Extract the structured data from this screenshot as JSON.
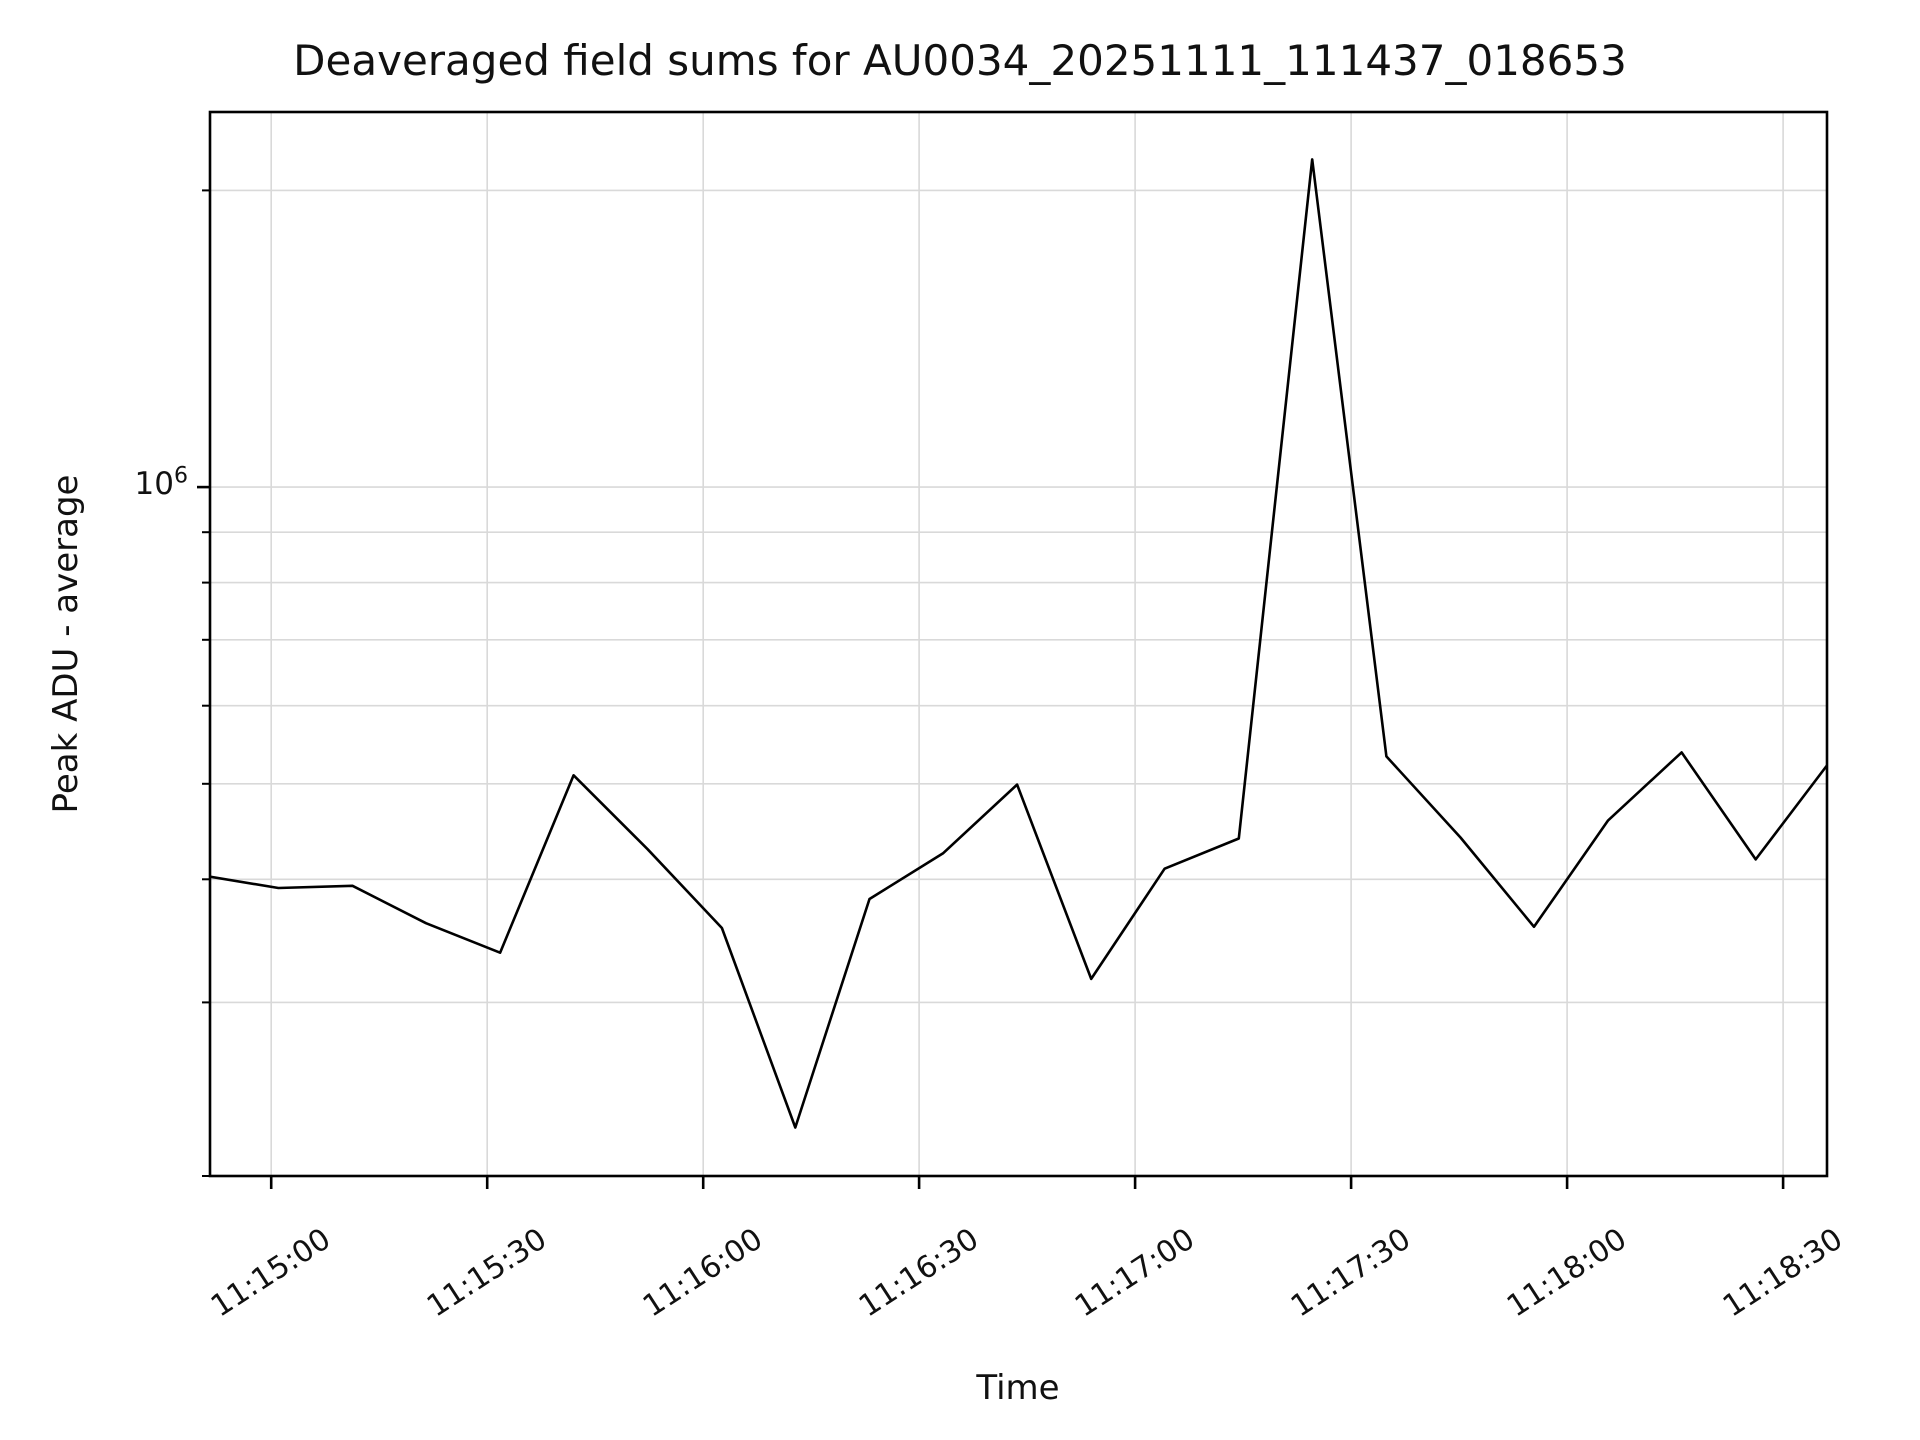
{
  "chart_data": {
    "type": "line",
    "title": "Deaveraged field sums for AU0034_20251111_111437_018653",
    "xlabel": "Time",
    "ylabel": "Peak ADU - average",
    "yscale": "log",
    "grid": true,
    "legend_position": "none",
    "line_color": "#000000",
    "grid_color": "#d9d9d9",
    "spine_color": "#000000",
    "ylim": [
      200000,
      2402000
    ],
    "xlim_seconds": [
      -8.5,
      216.1
    ],
    "x_reference_time": "11:15:00",
    "x_tick_labels": [
      "11:15:00",
      "11:15:30",
      "11:16:00",
      "11:16:30",
      "11:17:00",
      "11:17:30",
      "11:18:00",
      "11:18:30"
    ],
    "x_tick_seconds": [
      0,
      30,
      60,
      90,
      120,
      150,
      180,
      210
    ],
    "y_major_tick": {
      "base": "10",
      "exponent": "6",
      "value": 1000000
    },
    "y_minor_tick_values": [
      2000000,
      900000,
      800000,
      700000,
      600000,
      500000,
      400000,
      300000,
      200000
    ],
    "series": [
      {
        "name": "Peak ADU - average",
        "color": "#000000",
        "points": [
          {
            "time": "11:14:51",
            "t": -9.0,
            "value": 403000
          },
          {
            "time": "11:15:01",
            "t": 1.0,
            "value": 392000
          },
          {
            "time": "11:15:11",
            "t": 11.3,
            "value": 394000
          },
          {
            "time": "11:15:22",
            "t": 21.5,
            "value": 361000
          },
          {
            "time": "11:15:32",
            "t": 31.8,
            "value": 337000
          },
          {
            "time": "11:15:42",
            "t": 42.0,
            "value": 510000
          },
          {
            "time": "11:15:52",
            "t": 52.3,
            "value": 429000
          },
          {
            "time": "11:16:03",
            "t": 62.6,
            "value": 357000
          },
          {
            "time": "11:16:13",
            "t": 72.8,
            "value": 224000
          },
          {
            "time": "11:16:23",
            "t": 83.1,
            "value": 382000
          },
          {
            "time": "11:16:33",
            "t": 93.3,
            "value": 425000
          },
          {
            "time": "11:16:44",
            "t": 103.6,
            "value": 499000
          },
          {
            "time": "11:16:54",
            "t": 113.9,
            "value": 317000
          },
          {
            "time": "11:17:04",
            "t": 124.1,
            "value": 410000
          },
          {
            "time": "11:17:14",
            "t": 134.4,
            "value": 440000
          },
          {
            "time": "11:17:25",
            "t": 144.6,
            "value": 2150000
          },
          {
            "time": "11:17:35",
            "t": 154.9,
            "value": 533000
          },
          {
            "time": "11:17:45",
            "t": 165.2,
            "value": 441000
          },
          {
            "time": "11:17:55",
            "t": 175.4,
            "value": 358000
          },
          {
            "time": "11:18:06",
            "t": 185.7,
            "value": 459000
          },
          {
            "time": "11:18:16",
            "t": 195.9,
            "value": 538000
          },
          {
            "time": "11:18:26",
            "t": 206.2,
            "value": 419000
          },
          {
            "time": "11:18:36",
            "t": 216.1,
            "value": 522000
          }
        ]
      }
    ]
  }
}
